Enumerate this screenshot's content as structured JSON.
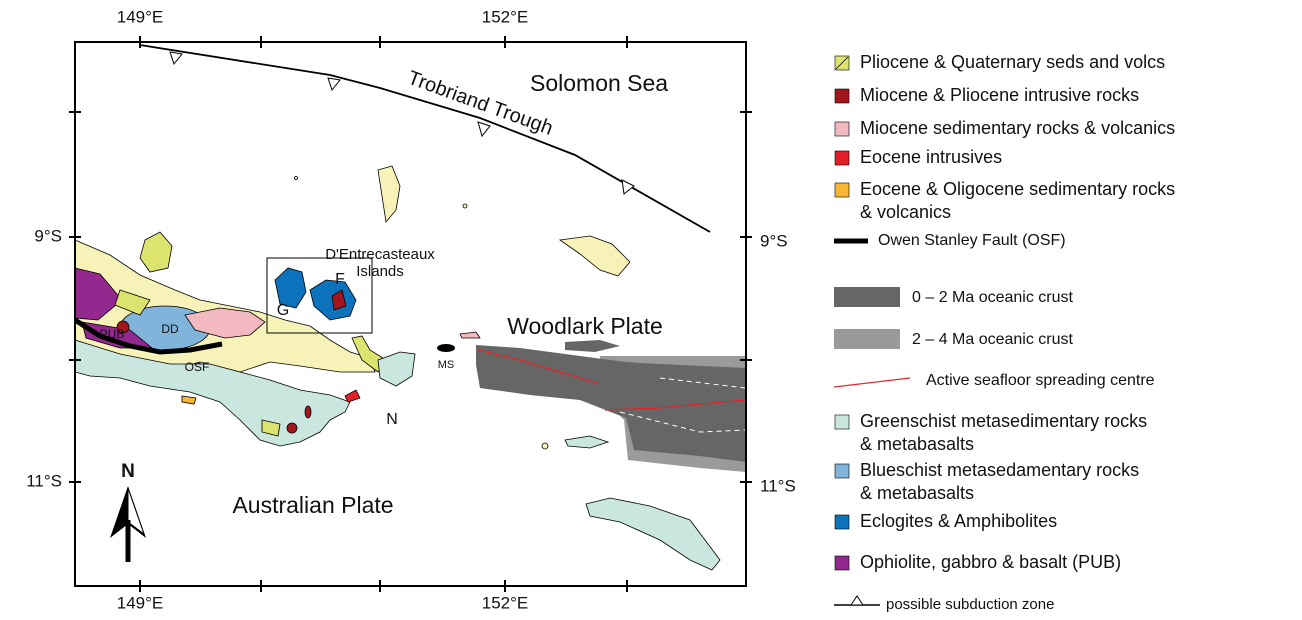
{
  "axes": {
    "top": [
      "149°E",
      "152°E"
    ],
    "bottom": [
      "149°E",
      "152°E"
    ],
    "left": [
      "9°S",
      "11°S"
    ],
    "right": [
      "9°S",
      "11°S"
    ]
  },
  "labels": {
    "solomon_sea": "Solomon Sea",
    "trobriand_trough": "Trobriand Trough",
    "dentrecasteaux": [
      "D'Entrecasteaux",
      "Islands"
    ],
    "g": "G",
    "f": "F",
    "woodlark_plate": "Woodlark Plate",
    "pub": "PUB",
    "dd": "DD",
    "osf": "OSF",
    "ms": "MS",
    "n": "N",
    "australian_plate": "Australian Plate",
    "north": "N"
  },
  "legend": [
    {
      "kind": "swatch",
      "color": "#dde36f",
      "lines": [
        "Pliocene & Quaternary seds and volcs"
      ]
    },
    {
      "kind": "swatch",
      "color": "#a3161b",
      "lines": [
        "Miocene & Pliocene intrusive rocks"
      ]
    },
    {
      "kind": "swatch",
      "color": "#f3b9c0",
      "lines": [
        "Miocene sedimentary rocks & volcanics"
      ]
    },
    {
      "kind": "swatch",
      "color": "#e41e26",
      "lines": [
        "Eocene intrusives"
      ]
    },
    {
      "kind": "swatch",
      "color": "#f8b634",
      "lines": [
        "Eocene & Oligocene sedimentary rocks",
        "& volcanics"
      ]
    },
    {
      "kind": "line",
      "color": "#000000",
      "lines": [
        "Owen Stanley Fault (OSF)"
      ]
    },
    {
      "kind": "bar",
      "color": "#666666",
      "lines": [
        "0 – 2 Ma oceanic crust"
      ]
    },
    {
      "kind": "bar",
      "color": "#9a9a9a",
      "lines": [
        "2 – 4 Ma oceanic crust"
      ]
    },
    {
      "kind": "thin",
      "color": "#e0262a",
      "lines": [
        "Active seafloor spreading centre"
      ]
    },
    {
      "kind": "swatch",
      "color": "#c9e7df",
      "lines": [
        "Greenschist metasedimentary rocks",
        "& metabasalts"
      ]
    },
    {
      "kind": "swatch",
      "color": "#80b4db",
      "lines": [
        "Blueschist metasedamentary rocks",
        "& metabasalts"
      ]
    },
    {
      "kind": "swatch",
      "color": "#0b72bb",
      "lines": [
        "Eclogites & Amphibolites"
      ]
    },
    {
      "kind": "swatch",
      "color": "#93288f",
      "lines": [
        "Ophiolite, gabbro & basalt (PUB)"
      ]
    },
    {
      "kind": "subduction",
      "color": "#000000",
      "lines": [
        "possible subduction zone"
      ]
    }
  ]
}
